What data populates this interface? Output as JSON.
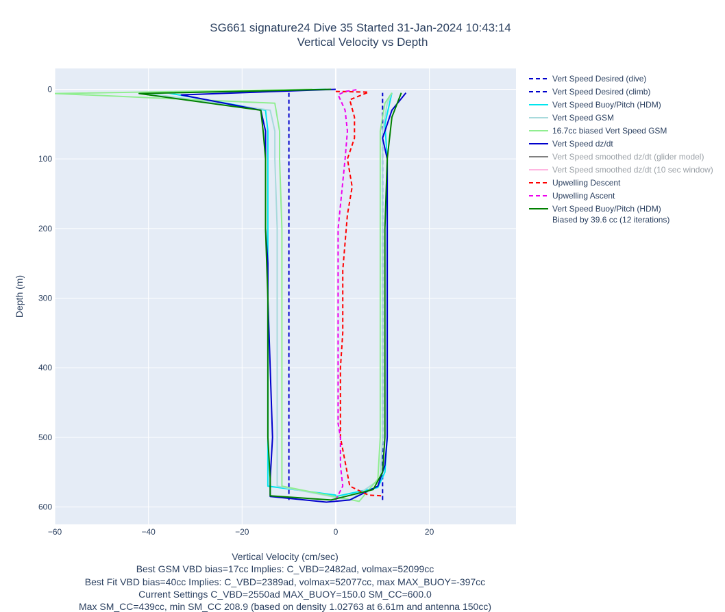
{
  "chart_data": {
    "type": "line",
    "title": "SG661 signature24 Dive 35 Started 31-Jan-2024 10:43:14",
    "subtitle": "Vertical Velocity vs Depth",
    "xlabel": "Vertical Velocity (cm/sec)",
    "ylabel": "Depth (m)",
    "xlim": [
      -60,
      38.5
    ],
    "ylim": [
      625,
      -30
    ],
    "y_reversed": true,
    "grid": true,
    "legend_position": "right",
    "x_ticks": [
      -60,
      -40,
      -20,
      0,
      20
    ],
    "x_tick_labels": [
      "−60",
      "−40",
      "−20",
      "0",
      "20"
    ],
    "y_ticks": [
      0,
      100,
      200,
      300,
      400,
      500,
      600
    ],
    "y_tick_labels": [
      "0",
      "100",
      "200",
      "300",
      "400",
      "500",
      "600"
    ],
    "notes": [
      "Best GSM VBD bias=17cc Implies: C_VBD=2482ad, volmax=52099cc",
      "Best Fit VBD bias=40cc Implies: C_VBD=2389ad, volmax=52077cc, max MAX_BUOY=-397cc",
      "Current Settings C_VBD=2550ad MAX_BUOY=150.0 SM_CC=600.0",
      "Max SM_CC=439cc, min SM_CC 208.9 (based on density 1.02763 at 6.61m and antenna 150cc)"
    ],
    "series": [
      {
        "name": "Vert Speed Desired (dive)",
        "color": "#0000cc",
        "dash": true,
        "x": [
          -10,
          -10
        ],
        "y": [
          5,
          590
        ]
      },
      {
        "name": "Vert Speed Desired (climb)",
        "color": "#0000cc",
        "dash": true,
        "x": [
          10,
          10
        ],
        "y": [
          590,
          5
        ]
      },
      {
        "name": "Vert Speed Buoy/Pitch (HDM)",
        "color": "#00e5ee",
        "dash": false,
        "x": [
          -2,
          -36,
          -15,
          -14.5,
          -14.5,
          -14.5,
          -14.5,
          -14.5,
          -14.5,
          -14.5,
          0,
          0,
          9,
          10.5,
          11,
          11,
          11,
          11,
          11,
          10.5,
          12
        ],
        "y": [
          0,
          5,
          30,
          60,
          100,
          200,
          300,
          400,
          500,
          570,
          583,
          585,
          572,
          550,
          500,
          400,
          300,
          200,
          100,
          50,
          5
        ]
      },
      {
        "name": "Vert Speed GSM",
        "color": "#a8dadc",
        "dash": false,
        "x": [
          -5,
          -40,
          -14,
          -13,
          -13,
          -12.5,
          -12.5,
          -12.5,
          -12.5,
          -12.5,
          3,
          9.5,
          10,
          10,
          10,
          10,
          10,
          10,
          11,
          12
        ],
        "y": [
          0,
          6,
          30,
          60,
          100,
          200,
          300,
          400,
          500,
          570,
          590,
          560,
          500,
          400,
          300,
          200,
          100,
          60,
          20,
          5
        ]
      },
      {
        "name": "16.7cc biased Vert Speed GSM",
        "color": "#90ee90",
        "dash": false,
        "x": [
          -5,
          -60,
          -13,
          -12,
          -12,
          -11.5,
          -11.5,
          -11.5,
          -11.5,
          -11.5,
          5,
          9,
          9.5,
          9.5,
          9.5,
          9.5,
          9.5,
          9.5,
          10.5,
          12
        ],
        "y": [
          0,
          6,
          20,
          60,
          100,
          200,
          300,
          400,
          500,
          570,
          592,
          560,
          500,
          400,
          300,
          200,
          100,
          60,
          20,
          5
        ]
      },
      {
        "name": "Vert Speed dz/dt",
        "color": "#0000cc",
        "dash": false,
        "x": [
          0,
          -33,
          -16,
          -15,
          -15,
          -15,
          -15,
          -14.5,
          -14.5,
          -14,
          -13.5,
          -14,
          -14,
          -2,
          3,
          9,
          10.5,
          11,
          11,
          11,
          11,
          11,
          11,
          10,
          12,
          15
        ],
        "y": [
          0,
          8,
          30,
          60,
          100,
          150,
          200,
          250,
          300,
          400,
          500,
          560,
          585,
          593,
          590,
          570,
          540,
          500,
          450,
          400,
          300,
          200,
          100,
          70,
          30,
          5
        ]
      },
      {
        "name": "Vert Speed smoothed dz/dt (glider model)",
        "color": "#808080",
        "dash": false,
        "hidden": true,
        "x": [],
        "y": []
      },
      {
        "name": "Vert Speed smoothed dz/dt (10 sec window)",
        "color": "#ffb6e1",
        "dash": false,
        "hidden": true,
        "x": [],
        "y": []
      },
      {
        "name": "Upwelling Descent",
        "color": "#ff0000",
        "dash": true,
        "x": [
          0,
          7,
          3,
          4,
          4,
          2.5,
          3.5,
          2.5,
          2,
          1.5,
          1.5,
          1.5,
          1,
          1,
          3,
          7,
          10
        ],
        "y": [
          3,
          4,
          15,
          40,
          70,
          100,
          140,
          180,
          220,
          260,
          300,
          350,
          400,
          500,
          570,
          583,
          584
        ]
      },
      {
        "name": "Upwelling Ascent",
        "color": "#ee00ee",
        "dash": true,
        "x": [
          0,
          1.5,
          1,
          1,
          0.5,
          0.5,
          0.5,
          0.5,
          0.5,
          2,
          2.5,
          2,
          1,
          0.5,
          2,
          5
        ],
        "y": [
          590,
          570,
          540,
          500,
          480,
          450,
          400,
          300,
          200,
          100,
          60,
          30,
          15,
          8,
          3,
          0
        ]
      },
      {
        "name": "Vert Speed Buoy/Pitch (HDM)",
        "name2": "Biased by 39.6 cc (12 iterations)",
        "color": "#008000",
        "dash": false,
        "x": [
          -1,
          -42,
          -16,
          -15.5,
          -15,
          -15,
          -14.5,
          -14.5,
          -14.5,
          -14,
          -14,
          -14,
          -1,
          8,
          10,
          10.5,
          10.5,
          10.5,
          10.5,
          11,
          12,
          14
        ],
        "y": [
          0,
          6,
          30,
          60,
          100,
          200,
          300,
          400,
          500,
          560,
          580,
          584,
          590,
          575,
          550,
          500,
          400,
          300,
          200,
          100,
          40,
          5
        ]
      }
    ]
  }
}
